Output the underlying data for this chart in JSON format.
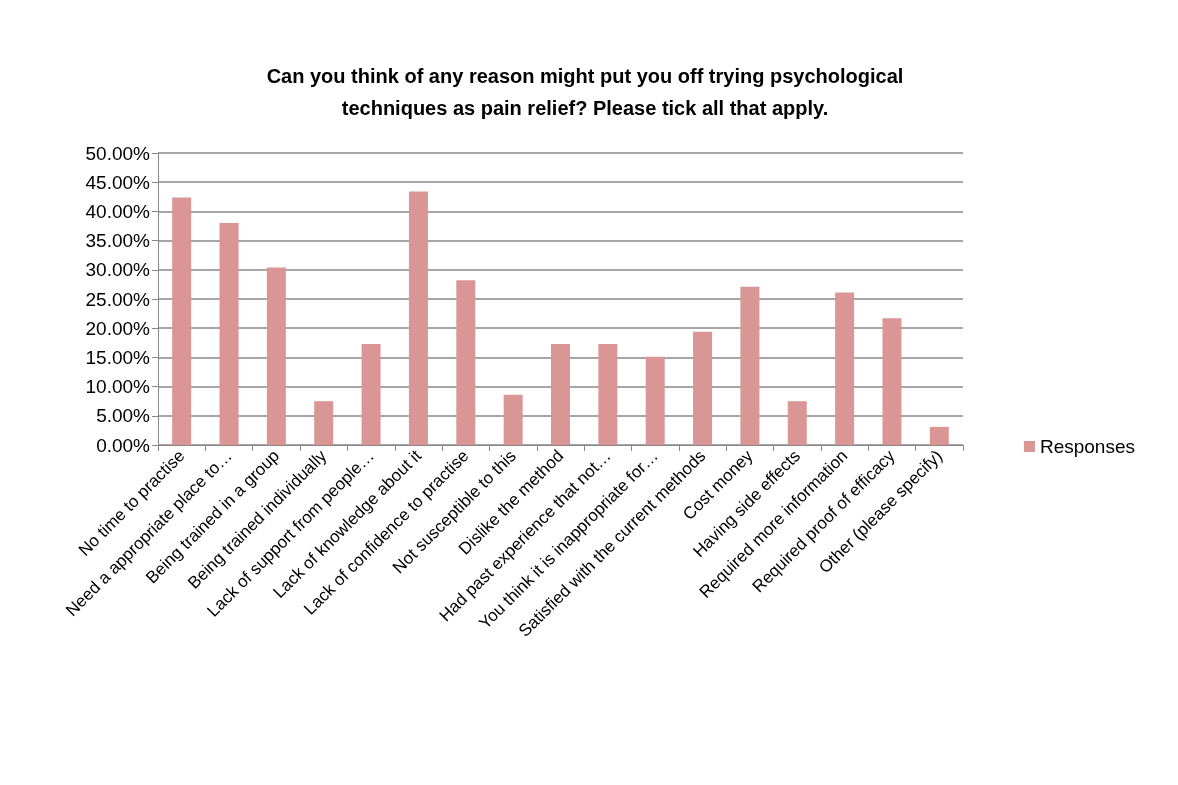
{
  "chart_data": {
    "type": "bar",
    "title": "Can you think of any reason might put you off trying psychological\ntechniques as pain relief? Please tick all that apply.",
    "categories": [
      "No time to practise",
      "Need a appropriate place to…",
      "Being trained in a group",
      "Being trained individually",
      "Lack of support from people…",
      "Lack of knowledge about it",
      "Lack of confidence to practise",
      "Not susceptible to this",
      "Dislike the method",
      "Had past experience that not…",
      "You think it is inappropriate for…",
      "Satisfied with the current methods",
      "Cost money",
      "Having side effects",
      "Required more information",
      "Required proof of efficacy",
      "Other (please specify)"
    ],
    "series": [
      {
        "name": "Responses",
        "color": "#d99694",
        "values": [
          42.4,
          38.0,
          30.4,
          7.5,
          17.3,
          43.4,
          28.2,
          8.6,
          17.3,
          17.3,
          15.1,
          19.4,
          27.1,
          7.5,
          26.1,
          21.7,
          3.1
        ]
      }
    ],
    "ylim": [
      0,
      50
    ],
    "yticks": [
      {
        "value": 0,
        "label": "0.00%"
      },
      {
        "value": 5,
        "label": "5.00%"
      },
      {
        "value": 10,
        "label": "10.00%"
      },
      {
        "value": 15,
        "label": "15.00%"
      },
      {
        "value": 20,
        "label": "20.00%"
      },
      {
        "value": 25,
        "label": "25.00%"
      },
      {
        "value": 30,
        "label": "30.00%"
      },
      {
        "value": 35,
        "label": "35.00%"
      },
      {
        "value": 40,
        "label": "40.00%"
      },
      {
        "value": 45,
        "label": "45.00%"
      },
      {
        "value": 50,
        "label": "50.00%"
      }
    ],
    "grid": "y",
    "legend": "right"
  }
}
